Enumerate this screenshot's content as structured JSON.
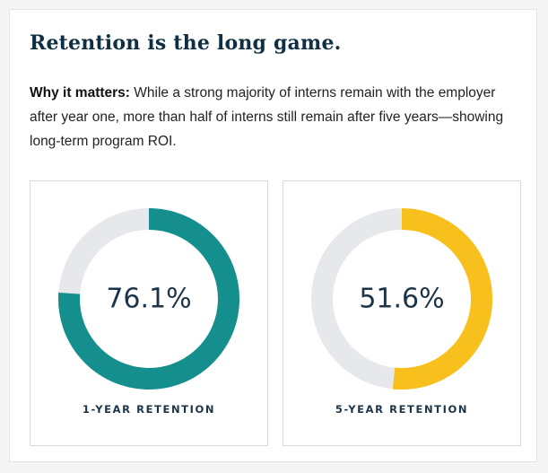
{
  "title": "Retention is the long game.",
  "body": {
    "lead": "Why it matters:",
    "text": "While a strong majority of interns remain with the employer after year one, more than half of interns still remain after five years—showing long-term program ROI."
  },
  "colors": {
    "title": "#0f2f44",
    "track": "#e6e8eb",
    "teal": "#158e8e",
    "yellow": "#f8c01c"
  },
  "chart_data": [
    {
      "type": "pie",
      "variant": "donut",
      "value": 76.1,
      "max": 100,
      "center_label": "76.1%",
      "label": "1-YEAR RETENTION",
      "color": "#158e8e",
      "track_color": "#e6e8eb"
    },
    {
      "type": "pie",
      "variant": "donut",
      "value": 51.6,
      "max": 100,
      "center_label": "51.6%",
      "label": "5-YEAR RETENTION",
      "color": "#f8c01c",
      "track_color": "#e6e8eb"
    }
  ]
}
